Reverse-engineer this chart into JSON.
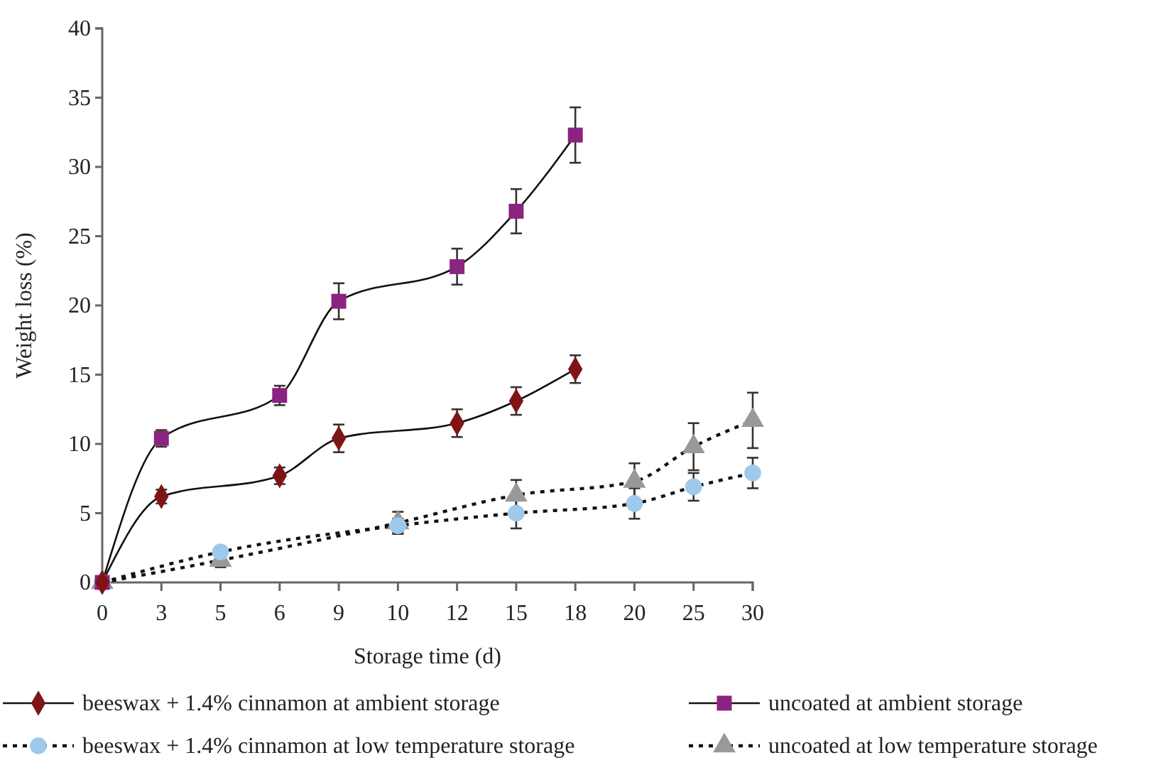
{
  "chart_data": {
    "type": "line",
    "xlabel": "Storage time (d)",
    "ylabel": "Weight loss (%)",
    "categories": [
      "0",
      "3",
      "5",
      "6",
      "9",
      "10",
      "12",
      "15",
      "18",
      "20",
      "25",
      "30"
    ],
    "ylim": [
      0,
      40
    ],
    "yticks": [
      0,
      5,
      10,
      15,
      20,
      25,
      30,
      35,
      40
    ],
    "grid": false,
    "legend": "bottom",
    "series": [
      {
        "name": "beeswax + 1.4% cinnamon at ambient storage",
        "color": "#7f1416",
        "marker": "diamond",
        "line_style": "solid",
        "values": [
          0,
          6.2,
          null,
          7.7,
          10.4,
          null,
          11.5,
          13.1,
          15.4,
          null,
          null,
          null
        ],
        "errors": [
          null,
          0.5,
          null,
          0.6,
          1,
          null,
          1,
          1,
          1,
          null,
          null,
          null
        ]
      },
      {
        "name": "uncoated at ambient storage",
        "color": "#8b2380",
        "marker": "square",
        "line_style": "solid",
        "values": [
          0,
          10.4,
          null,
          13.5,
          20.3,
          null,
          22.8,
          26.8,
          32.3,
          null,
          null,
          null
        ],
        "errors": [
          null,
          0.6,
          null,
          0.7,
          1.3,
          null,
          1.3,
          1.6,
          2,
          null,
          null,
          null
        ]
      },
      {
        "name": "beeswax + 1.4% cinnamon at low temperature storage",
        "color": "#9dc9ec",
        "marker": "circle",
        "line_style": "dotted",
        "values": [
          0,
          null,
          2.2,
          null,
          null,
          4.1,
          null,
          5.0,
          null,
          5.7,
          6.9,
          7.9
        ],
        "errors": [
          null,
          null,
          null,
          null,
          null,
          0.5,
          null,
          1.1,
          null,
          1.1,
          1,
          1.1
        ]
      },
      {
        "name": "uncoated at low temperature storage",
        "color": "#999999",
        "marker": "triangle",
        "line_style": "dotted",
        "values": [
          0,
          null,
          1.6,
          null,
          null,
          4.3,
          null,
          6.3,
          null,
          7.3,
          9.8,
          11.7
        ],
        "errors": [
          null,
          null,
          0.5,
          null,
          null,
          0.8,
          null,
          1.1,
          null,
          1.3,
          1.7,
          2
        ]
      }
    ]
  }
}
